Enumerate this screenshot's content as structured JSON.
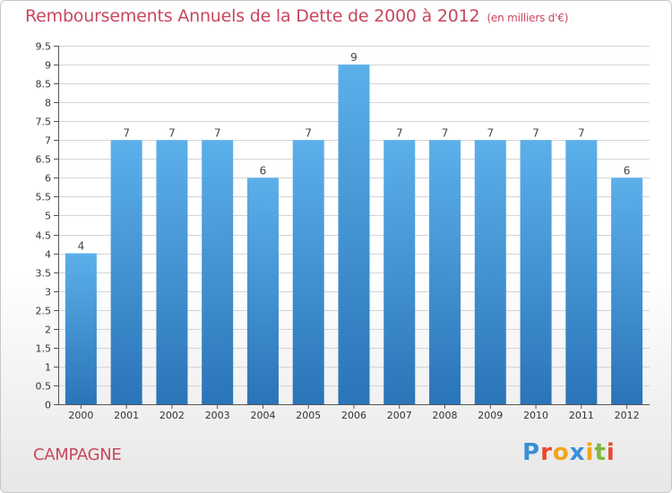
{
  "header": {
    "title": "Remboursements Annuels de la Dette de 2000 à 2012",
    "subtitle": "(en milliers d'€)"
  },
  "footer": {
    "commune": "CAMPAGNE",
    "logo_letters": [
      "P",
      "r",
      "o",
      "x",
      "i",
      "t",
      "i"
    ],
    "logo_colors": [
      "#3a8fd6",
      "#e8492f",
      "#f2a51a",
      "#3a8fd6",
      "#f2a51a",
      "#7cb93c",
      "#e8492f"
    ]
  },
  "colors": {
    "bar_top": "#5cb0ea",
    "bar_bottom": "#2a74b8",
    "grid": "#d4d4d4",
    "accent": "#c8475e"
  },
  "chart_data": {
    "type": "bar",
    "title": "Remboursements Annuels de la Dette de 2000 à 2012",
    "subtitle": "(en milliers d'€)",
    "xlabel": "",
    "ylabel": "",
    "categories": [
      "2000",
      "2001",
      "2002",
      "2003",
      "2004",
      "2005",
      "2006",
      "2007",
      "2008",
      "2009",
      "2010",
      "2011",
      "2012"
    ],
    "values": [
      4,
      7,
      7,
      7,
      6,
      7,
      9,
      7,
      7,
      7,
      7,
      7,
      6
    ],
    "data_labels": [
      "4",
      "7",
      "7",
      "7",
      "6",
      "7",
      "9",
      "7",
      "7",
      "7",
      "7",
      "7",
      "6"
    ],
    "ylim": [
      0,
      9.5
    ],
    "yticks": [
      0,
      0.5,
      1,
      1.5,
      2,
      2.5,
      3,
      3.5,
      4,
      4.5,
      5,
      5.5,
      6,
      6.5,
      7,
      7.5,
      8,
      8.5,
      9,
      9.5
    ],
    "ytick_labels": [
      "0",
      "0.5",
      "1",
      "1.5",
      "2",
      "2.5",
      "3",
      "3.5",
      "4",
      "4.5",
      "5",
      "5.5",
      "6",
      "6.5",
      "7",
      "7.5",
      "8",
      "8.5",
      "9",
      "9.5"
    ],
    "grid": true,
    "legend": "none"
  }
}
